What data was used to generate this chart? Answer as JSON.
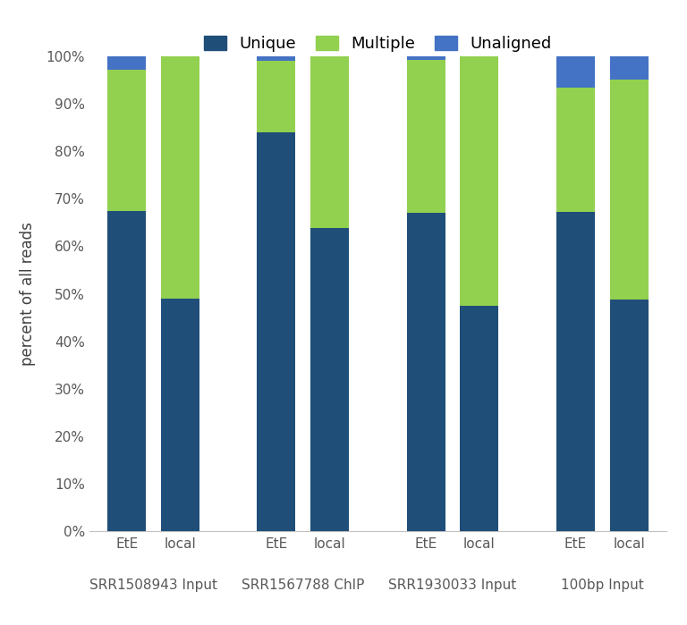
{
  "categories": [
    "EtE",
    "local",
    "EtE",
    "local",
    "EtE",
    "local",
    "EtE",
    "local"
  ],
  "group_labels": [
    "SRR1508943 Input",
    "SRR1567788 ChIP",
    "SRR1930033 Input",
    "100bp Input"
  ],
  "unique": [
    0.674,
    0.49,
    0.84,
    0.638,
    0.67,
    0.475,
    0.672,
    0.488
  ],
  "multiple": [
    0.298,
    0.51,
    0.15,
    0.362,
    0.323,
    0.525,
    0.262,
    0.463
  ],
  "unaligned": [
    0.028,
    0.0,
    0.01,
    0.0,
    0.007,
    0.0,
    0.066,
    0.049
  ],
  "color_unique": "#1f4e79",
  "color_multiple": "#92d050",
  "color_unaligned": "#4472c4",
  "ylabel": "percent of all reads",
  "ylim": [
    0,
    1.0
  ],
  "yticks": [
    0.0,
    0.1,
    0.2,
    0.3,
    0.4,
    0.5,
    0.6,
    0.7,
    0.8,
    0.9,
    1.0
  ],
  "ytick_labels": [
    "0%",
    "10%",
    "20%",
    "30%",
    "40%",
    "50%",
    "60%",
    "70%",
    "80%",
    "90%",
    "100%"
  ],
  "legend_labels": [
    "Unique",
    "Multiple",
    "Unaligned"
  ],
  "bar_width": 0.72,
  "background_color": "#ffffff",
  "group_positions": [
    1,
    2,
    3.8,
    4.8,
    6.6,
    7.6,
    9.4,
    10.4
  ],
  "group_centers": [
    1.5,
    4.3,
    7.1,
    9.9
  ],
  "xlim": [
    0.3,
    11.1
  ]
}
